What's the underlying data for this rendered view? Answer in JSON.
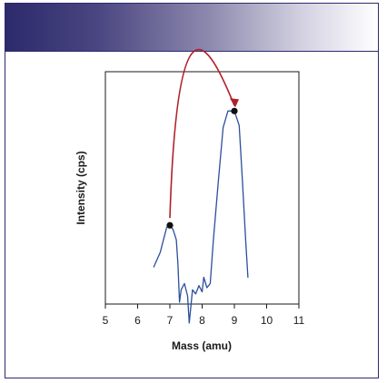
{
  "chart_data": {
    "type": "line",
    "xlabel": "Mass (amu)",
    "ylabel": "Intensity (cps)",
    "xlim": [
      5,
      11
    ],
    "ylim": [
      0,
      100
    ],
    "x_ticks": [
      5,
      6,
      7,
      8,
      9,
      10,
      11
    ],
    "grid": false,
    "series": [
      {
        "color": "#2b4f9c",
        "points": [
          [
            6.5,
            17
          ],
          [
            6.7,
            24
          ],
          [
            6.8,
            30
          ],
          [
            6.9,
            36
          ],
          [
            7.0,
            37
          ],
          [
            7.1,
            35
          ],
          [
            7.2,
            30
          ],
          [
            7.25,
            18
          ],
          [
            7.3,
            0
          ],
          [
            7.35,
            6
          ],
          [
            7.45,
            9
          ],
          [
            7.55,
            3
          ],
          [
            7.6,
            -10
          ],
          [
            7.7,
            6
          ],
          [
            7.8,
            4
          ],
          [
            7.9,
            8
          ],
          [
            8.0,
            5
          ],
          [
            8.05,
            12
          ],
          [
            8.15,
            7
          ],
          [
            8.25,
            9
          ],
          [
            8.35,
            30
          ],
          [
            8.5,
            58
          ],
          [
            8.65,
            84
          ],
          [
            8.8,
            92
          ],
          [
            9.0,
            92
          ],
          [
            9.15,
            85
          ],
          [
            9.25,
            58
          ],
          [
            9.35,
            30
          ],
          [
            9.42,
            12
          ]
        ]
      }
    ],
    "highlight_points": [
      {
        "x": 7.0,
        "y": 37
      },
      {
        "x": 9.0,
        "y": 92
      }
    ],
    "arrow": {
      "from": {
        "x": 7.0,
        "y": 37
      },
      "to": {
        "x": 9.0,
        "y": 92
      },
      "color": "#b0202a"
    }
  }
}
